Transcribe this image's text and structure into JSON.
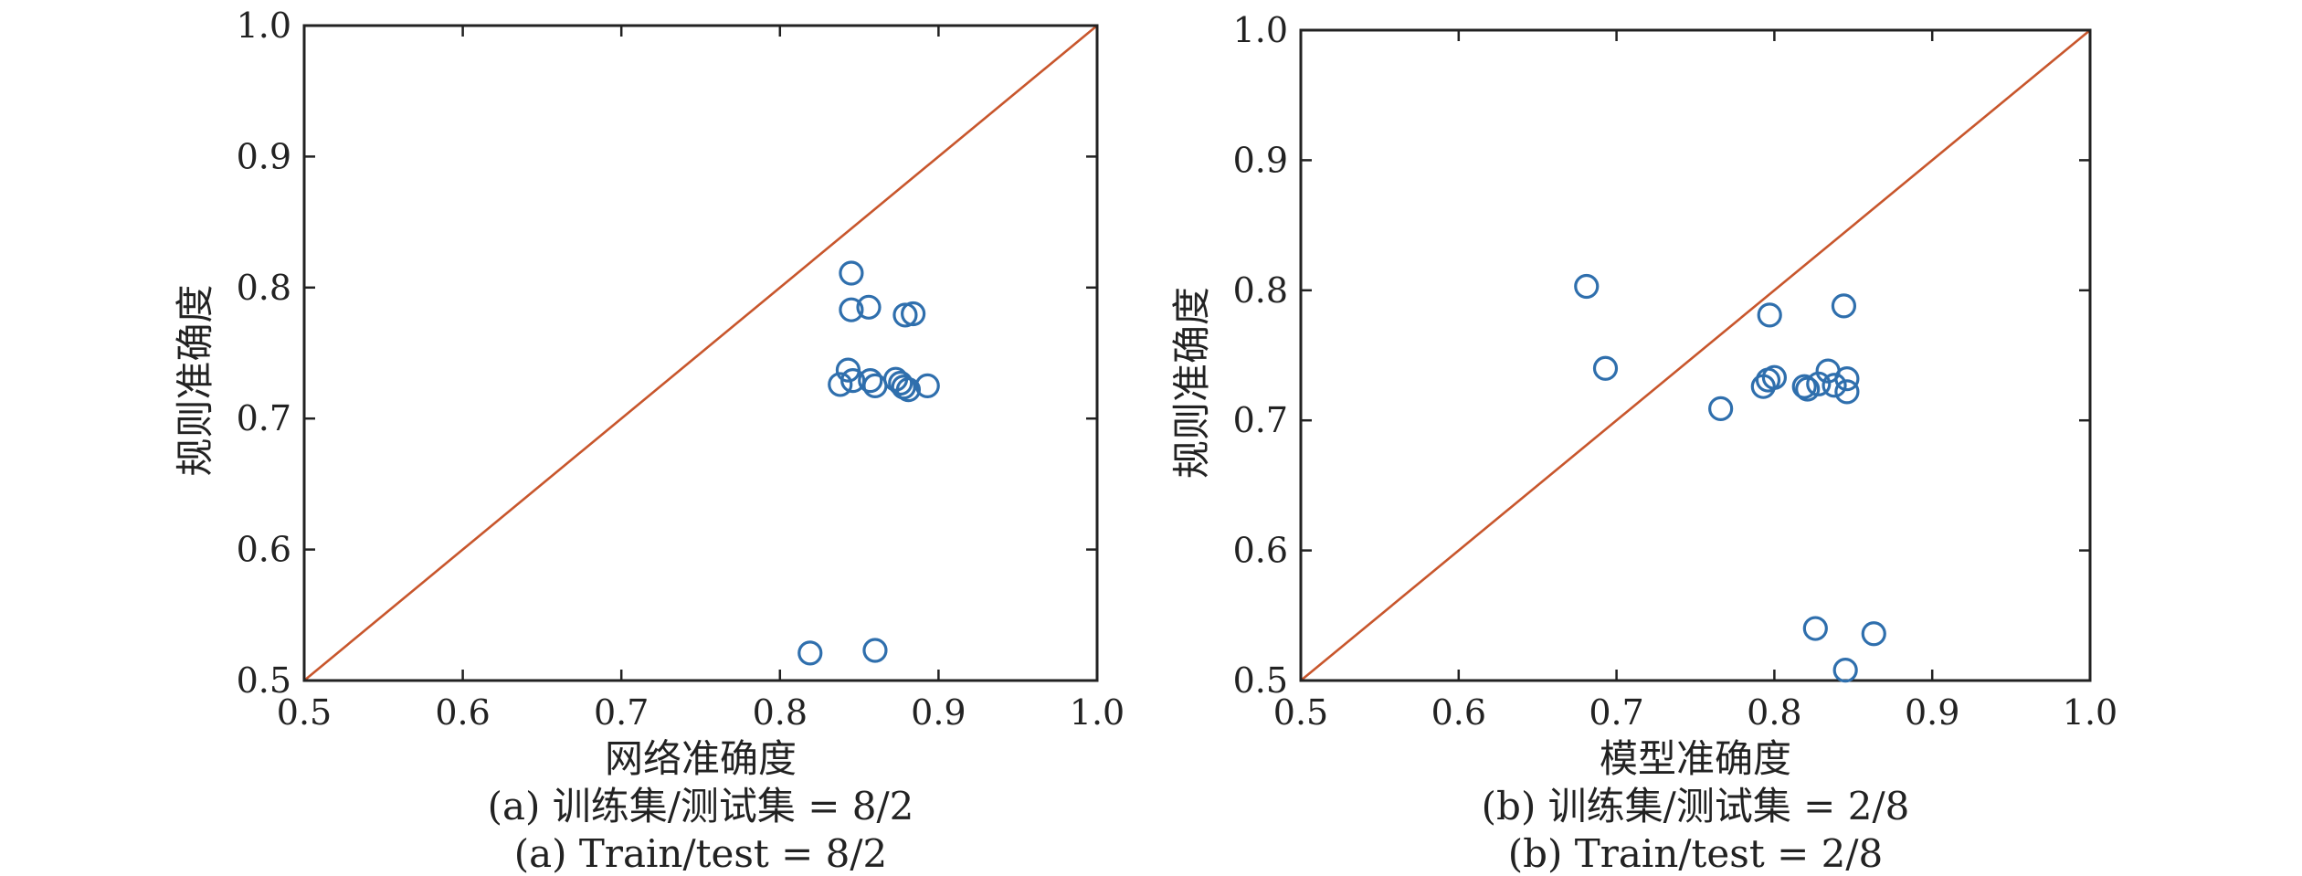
{
  "chart_data": [
    {
      "type": "scatter",
      "xlabel": "网络准确度",
      "ylabel": "规则准确度",
      "xlim": [
        0.5,
        1.0
      ],
      "ylim": [
        0.5,
        1.0
      ],
      "xticks": [
        "0.5",
        "0.6",
        "0.7",
        "0.8",
        "0.9",
        "1.0"
      ],
      "yticks": [
        "0.5",
        "0.6",
        "0.7",
        "0.8",
        "0.9",
        "1.0"
      ],
      "reference_line": "y=x",
      "captions": [
        "(a) 训练集/测试集 = 8/2",
        "(a) Train/test = 8/2"
      ],
      "points": [
        {
          "x": 0.845,
          "y": 0.811
        },
        {
          "x": 0.845,
          "y": 0.783
        },
        {
          "x": 0.856,
          "y": 0.785
        },
        {
          "x": 0.879,
          "y": 0.779
        },
        {
          "x": 0.884,
          "y": 0.78
        },
        {
          "x": 0.843,
          "y": 0.737
        },
        {
          "x": 0.838,
          "y": 0.726
        },
        {
          "x": 0.846,
          "y": 0.729
        },
        {
          "x": 0.857,
          "y": 0.729
        },
        {
          "x": 0.86,
          "y": 0.725
        },
        {
          "x": 0.873,
          "y": 0.73
        },
        {
          "x": 0.876,
          "y": 0.727
        },
        {
          "x": 0.878,
          "y": 0.724
        },
        {
          "x": 0.881,
          "y": 0.722
        },
        {
          "x": 0.893,
          "y": 0.725
        },
        {
          "x": 0.819,
          "y": 0.521
        },
        {
          "x": 0.86,
          "y": 0.523
        }
      ]
    },
    {
      "type": "scatter",
      "xlabel": "模型准确度",
      "ylabel": "规则准确度",
      "xlim": [
        0.5,
        1.0
      ],
      "ylim": [
        0.5,
        1.0
      ],
      "xticks": [
        "0.5",
        "0.6",
        "0.7",
        "0.8",
        "0.9",
        "1.0"
      ],
      "yticks": [
        "0.5",
        "0.6",
        "0.7",
        "0.8",
        "0.9",
        "1.0"
      ],
      "reference_line": "y=x",
      "captions": [
        "(b) 训练集/测试集 = 2/8",
        "(b) Train/test = 2/8"
      ],
      "points": [
        {
          "x": 0.681,
          "y": 0.803
        },
        {
          "x": 0.693,
          "y": 0.74
        },
        {
          "x": 0.766,
          "y": 0.709
        },
        {
          "x": 0.797,
          "y": 0.781
        },
        {
          "x": 0.793,
          "y": 0.726
        },
        {
          "x": 0.796,
          "y": 0.731
        },
        {
          "x": 0.8,
          "y": 0.733
        },
        {
          "x": 0.819,
          "y": 0.726
        },
        {
          "x": 0.821,
          "y": 0.724
        },
        {
          "x": 0.828,
          "y": 0.728
        },
        {
          "x": 0.834,
          "y": 0.738
        },
        {
          "x": 0.838,
          "y": 0.727
        },
        {
          "x": 0.844,
          "y": 0.788
        },
        {
          "x": 0.846,
          "y": 0.732
        },
        {
          "x": 0.846,
          "y": 0.722
        },
        {
          "x": 0.826,
          "y": 0.54
        },
        {
          "x": 0.863,
          "y": 0.536
        },
        {
          "x": 0.845,
          "y": 0.508
        }
      ]
    }
  ]
}
